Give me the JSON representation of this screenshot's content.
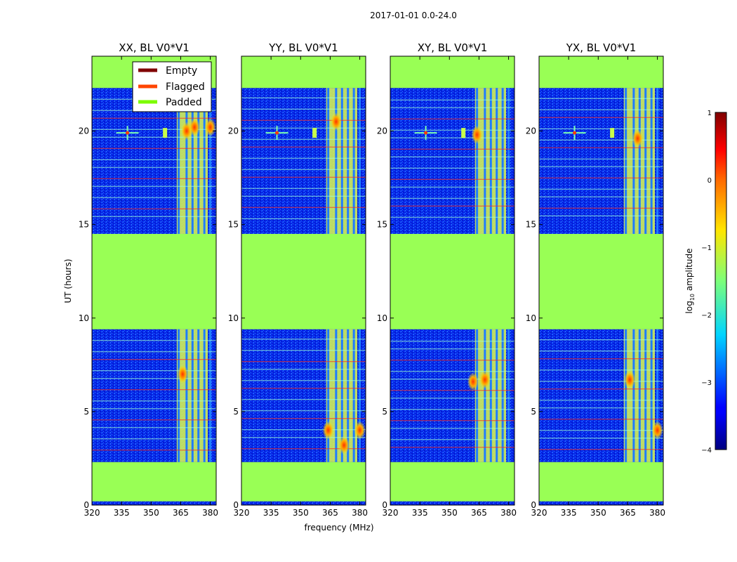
{
  "chart_data": {
    "type": "heatmap",
    "suptitle": "2017-01-01 0.0-24.0",
    "xlabel": "frequency (MHz)",
    "ylabel": "UT (hours)",
    "xlim": [
      320,
      383
    ],
    "ylim": [
      0,
      24
    ],
    "xticks": [
      "320",
      "335",
      "350",
      "365",
      "380"
    ],
    "yticks": [
      "0",
      "5",
      "10",
      "15",
      "20"
    ],
    "panels": [
      {
        "title": "XX, BL V0*V1",
        "strong_bursts": [
          [
            366,
            7.0
          ],
          [
            368,
            20.0
          ],
          [
            372,
            20.2
          ],
          [
            380,
            20.2
          ]
        ]
      },
      {
        "title": "YY, BL V0*V1",
        "strong_bursts": [
          [
            364,
            4.0
          ],
          [
            372,
            3.2
          ],
          [
            380,
            4.0
          ],
          [
            368,
            20.5
          ]
        ]
      },
      {
        "title": "XY, BL V0*V1",
        "strong_bursts": [
          [
            362,
            6.6
          ],
          [
            368,
            6.7
          ],
          [
            364,
            19.8
          ]
        ]
      },
      {
        "title": "YX, BL V0*V1",
        "strong_bursts": [
          [
            366,
            6.7
          ],
          [
            370,
            19.6
          ],
          [
            380,
            4.0
          ]
        ]
      }
    ],
    "data_blocks": [
      {
        "t_start": 0.0,
        "t_end": 0.2
      },
      {
        "t_start": 2.3,
        "t_end": 9.4
      },
      {
        "t_start": 14.5,
        "t_end": 22.3
      }
    ],
    "rfi_band_mhz": [
      363,
      383
    ],
    "rfi_channels_mhz": [
      364,
      368,
      371,
      374,
      377,
      380
    ],
    "point_source_mhz": 338,
    "point_source_ut": 19.9,
    "legend": {
      "location": "upper-right of first panel",
      "entries": [
        {
          "label": "Empty",
          "color": "#800000"
        },
        {
          "label": "Flagged",
          "color": "#ff4500"
        },
        {
          "label": "Padded",
          "color": "#7cfc00"
        }
      ]
    },
    "colorbar": {
      "label_main": "log",
      "label_sub": "10",
      "label_rest": " amplitude",
      "range": [
        -4,
        1
      ],
      "ticks": [
        "1",
        "0",
        "−1",
        "−2",
        "−3",
        "−4"
      ]
    }
  },
  "colors": {
    "padded": "#99ff55",
    "background": "#0022ee",
    "flag_line": "#ff2a1a"
  }
}
